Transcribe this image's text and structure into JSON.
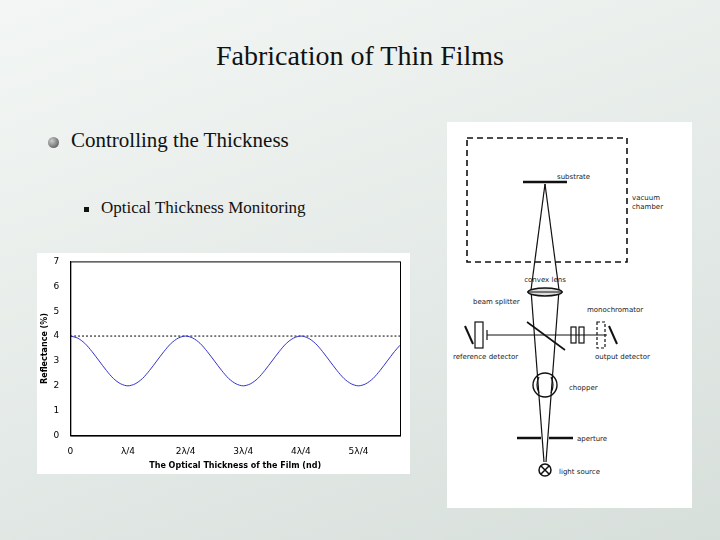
{
  "slide": {
    "title": "Fabrication of Thin Films",
    "bullet": "Controlling the Thickness",
    "sub_bullet": "Optical Thickness Monitoring",
    "diagram": {
      "labels": {
        "substrate": "substrate",
        "vacuum_chamber": "vacuum chamber",
        "convex_lens": "convex lens",
        "beam_splitter": "beam splitter",
        "monochromator": "monochromator",
        "reference_detector": "reference detector",
        "output_detector": "output detector",
        "chopper": "chopper",
        "aperture": "aperture",
        "light_source": "light source"
      }
    }
  },
  "chart_data": {
    "type": "line",
    "x_label": "The Optical Thickness of the Film (nd)",
    "y_label": "Reflectance (%)",
    "series": [
      {
        "color": "#3333cc",
        "line_style": "solid",
        "x": [
          0,
          0.125,
          0.25,
          0.375,
          0.5,
          0.625,
          0.75,
          0.875,
          1,
          1.125,
          1.25,
          1.375,
          1.5,
          1.625,
          1.75,
          1.875,
          2,
          2.125,
          2.25,
          2.375,
          2.5,
          2.625,
          2.75,
          2.875,
          3,
          3.125,
          3.25,
          3.375,
          3.5,
          3.625,
          3.75,
          3.875,
          4,
          4.125,
          4.25,
          4.375,
          4.5,
          4.625,
          4.75,
          4.875,
          5,
          5.125,
          5.25,
          5.375,
          5.5,
          5.625,
          5.72
        ],
        "values": [
          4,
          3.92,
          3.71,
          3.38,
          3,
          2.62,
          2.29,
          2.08,
          2,
          2.08,
          2.29,
          2.62,
          3,
          3.38,
          3.71,
          3.92,
          4,
          3.92,
          3.71,
          3.38,
          3,
          2.62,
          2.29,
          2.08,
          2,
          2.08,
          2.29,
          2.62,
          3,
          3.38,
          3.71,
          3.92,
          4,
          3.92,
          3.71,
          3.38,
          3,
          2.62,
          2.29,
          2.08,
          2,
          2.08,
          2.29,
          2.62,
          3,
          3.38,
          3.63
        ]
      },
      {
        "color": "#000000",
        "line_style": "dotted",
        "x": [
          0,
          5.72
        ],
        "values": [
          4,
          4
        ]
      }
    ],
    "xlim": [
      0,
      5.72
    ],
    "xticks": [
      0,
      {
        "value": 1,
        "label": "λ/4"
      },
      {
        "value": 2,
        "label": "2λ/4"
      },
      {
        "value": 3,
        "label": "3λ/4"
      },
      {
        "value": 4,
        "label": "4λ/4"
      },
      {
        "value": 5,
        "label": "5λ/4"
      }
    ],
    "ylim": [
      0,
      7
    ],
    "yticks": [
      0,
      1,
      2,
      3,
      4,
      5,
      6,
      7
    ],
    "grid": false
  }
}
